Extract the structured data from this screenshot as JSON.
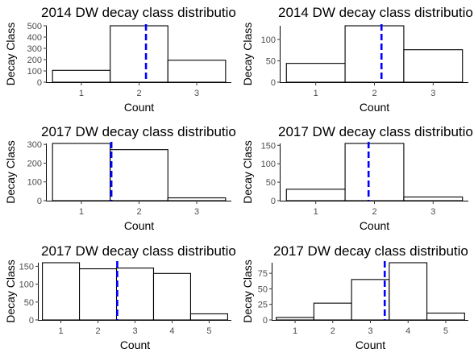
{
  "chart_data": [
    {
      "type": "bar",
      "title": "2014 DW decay class distributio",
      "xlabel": "Count",
      "ylabel": "Decay Class",
      "categories": [
        "1",
        "2",
        "3"
      ],
      "values": [
        105,
        500,
        195
      ],
      "ylim": [
        0,
        500
      ],
      "yticks": [
        "0",
        "100",
        "200",
        "300",
        "400",
        "500"
      ],
      "mean_line": 2.12,
      "bar_fill": "#ffffff",
      "bar_stroke": "#000000",
      "mean_line_color": "#0000ff",
      "grid": false
    },
    {
      "type": "bar",
      "title": "2014 DW decay class distributio",
      "xlabel": "Count",
      "ylabel": "Decay Class",
      "categories": [
        "1",
        "2",
        "3"
      ],
      "values": [
        44,
        132,
        76
      ],
      "ylim": [
        0,
        132
      ],
      "yticks": [
        "0",
        "50",
        "100"
      ],
      "mean_line": 2.12,
      "bar_fill": "#ffffff",
      "bar_stroke": "#000000",
      "mean_line_color": "#0000ff",
      "grid": false
    },
    {
      "type": "bar",
      "title": "2017 DW decay class distributio",
      "xlabel": "Count",
      "ylabel": "Decay Class",
      "categories": [
        "1",
        "2",
        "3"
      ],
      "values": [
        305,
        272,
        15
      ],
      "ylim": [
        0,
        305
      ],
      "yticks": [
        "0",
        "100",
        "200",
        "300"
      ],
      "mean_line": 1.52,
      "bar_fill": "#ffffff",
      "bar_stroke": "#000000",
      "mean_line_color": "#0000ff",
      "grid": false
    },
    {
      "type": "bar",
      "title": "2017 DW decay class distributio",
      "xlabel": "Count",
      "ylabel": "Decay Class",
      "categories": [
        "1",
        "2",
        "3"
      ],
      "values": [
        31,
        155,
        10
      ],
      "ylim": [
        0,
        155
      ],
      "yticks": [
        "0",
        "50",
        "100",
        "150"
      ],
      "mean_line": 1.9,
      "bar_fill": "#ffffff",
      "bar_stroke": "#000000",
      "mean_line_color": "#0000ff",
      "grid": false
    },
    {
      "type": "bar",
      "title": "2017 DW decay class distributio",
      "xlabel": "Count",
      "ylabel": "Decay Class",
      "categories": [
        "1",
        "2",
        "3",
        "4",
        "5"
      ],
      "values": [
        160,
        143,
        145,
        130,
        17
      ],
      "ylim": [
        0,
        160
      ],
      "yticks": [
        "0",
        "50",
        "100",
        "150"
      ],
      "mean_line": 2.52,
      "bar_fill": "#ffffff",
      "bar_stroke": "#000000",
      "mean_line_color": "#0000ff",
      "grid": false
    },
    {
      "type": "bar",
      "title": "2017 DW decay class distributio",
      "xlabel": "Count",
      "ylabel": "Decay Class",
      "categories": [
        "1",
        "2",
        "3",
        "4",
        "5"
      ],
      "values": [
        4,
        27,
        65,
        92,
        11
      ],
      "ylim": [
        0,
        92
      ],
      "yticks": [
        "0",
        "25",
        "50",
        "75"
      ],
      "mean_line": 3.38,
      "bar_fill": "#ffffff",
      "bar_stroke": "#000000",
      "mean_line_color": "#0000ff",
      "grid": false
    }
  ]
}
